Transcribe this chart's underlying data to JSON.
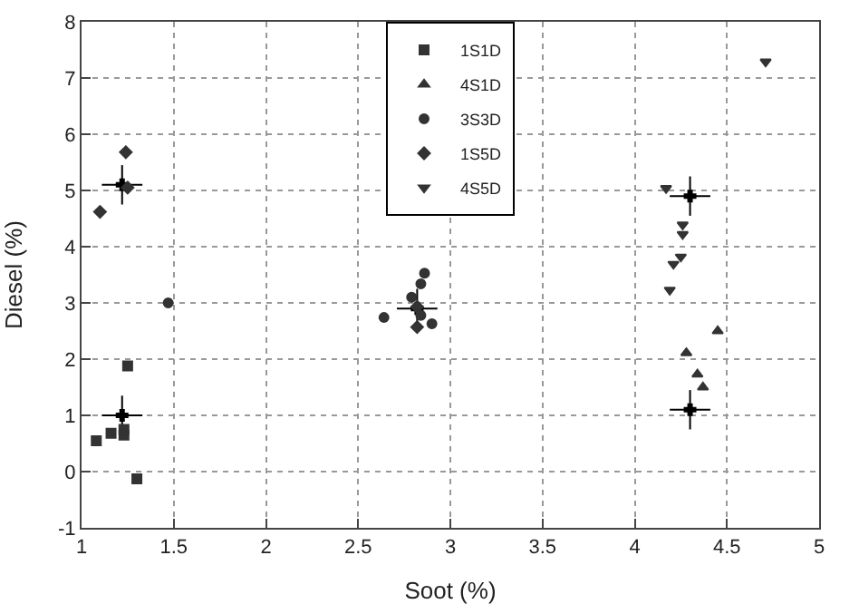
{
  "chart_data": {
    "type": "scatter",
    "xlabel": "Soot (%)",
    "ylabel": "Diesel (%)",
    "xlim": [
      1,
      5
    ],
    "ylim": [
      -1,
      8
    ],
    "xticks": [
      1,
      1.5,
      2,
      2.5,
      3,
      3.5,
      4,
      4.5,
      5
    ],
    "yticks": [
      -1,
      0,
      1,
      2,
      3,
      4,
      5,
      6,
      7,
      8
    ],
    "grid": true,
    "legend": "top",
    "series": [
      {
        "name": "1S1D",
        "color": "#333333",
        "marker": "square",
        "x": [
          1.08,
          1.16,
          1.23,
          1.23,
          1.25,
          1.3
        ],
        "values": [
          0.55,
          0.68,
          0.75,
          0.65,
          1.88,
          -0.13
        ]
      },
      {
        "name": "4S1D",
        "color": "#333333",
        "marker": "triangle",
        "x": [
          4.45,
          4.28,
          4.34,
          4.37
        ],
        "values": [
          2.5,
          2.11,
          1.73,
          1.5
        ]
      },
      {
        "name": "3S3D",
        "color": "#333333",
        "marker": "circle",
        "x": [
          1.47,
          2.64,
          2.86,
          2.84,
          2.79,
          2.84,
          2.9
        ],
        "values": [
          3.0,
          2.74,
          3.53,
          3.34,
          3.1,
          2.78,
          2.63
        ]
      },
      {
        "name": "1S5D",
        "color": "#333333",
        "marker": "diamond",
        "x": [
          1.1,
          1.24,
          1.25,
          2.82,
          2.82
        ],
        "values": [
          4.62,
          5.68,
          5.05,
          2.57,
          2.93
        ]
      },
      {
        "name": "4S5D",
        "color": "#333333",
        "marker": "triangle-down",
        "x": [
          4.71,
          4.17,
          4.26,
          4.26,
          4.25,
          4.21,
          4.19
        ],
        "values": [
          7.29,
          5.04,
          4.39,
          4.22,
          3.82,
          3.69,
          3.23
        ]
      },
      {
        "color": "#000000",
        "marker": "cross",
        "x": [
          1.22,
          1.22,
          2.82,
          4.3,
          4.3
        ],
        "values": [
          1.0,
          5.1,
          2.9,
          4.9,
          1.1
        ],
        "errors": [
          0.35,
          0.35,
          0.35,
          0.35,
          0.35
        ],
        "xerrors": [
          0.11,
          0.11,
          0.11,
          0.11,
          0.11
        ]
      }
    ]
  }
}
